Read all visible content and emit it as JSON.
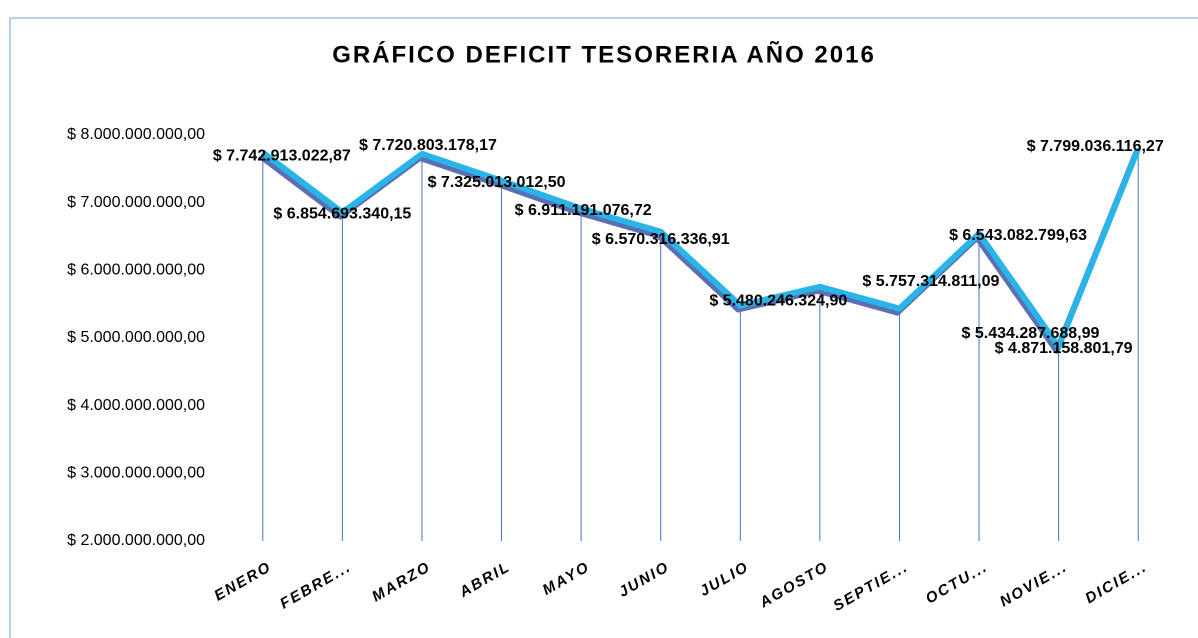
{
  "chart_data": {
    "type": "line",
    "title": "GRÁFICO DEFICIT TESORERIA AÑO 2016",
    "categories": [
      "ENERO",
      "FEBRE...",
      "MARZO",
      "ABRIL",
      "MAYO",
      "JUNIO",
      "JULIO",
      "AGOSTO",
      "SEPTIE...",
      "OCTU...",
      "NOVIE...",
      "DICIE..."
    ],
    "series": [
      {
        "color": "#29b5e8",
        "values": [
          7742913022.87,
          6854693340.15,
          7720803178.17,
          7325013012.5,
          6911191076.72,
          6570316336.91,
          5480246324.9,
          5757314811.09,
          5434287688.99,
          6543082799.63,
          4871158801.79,
          7799036116.27
        ],
        "value_labels": [
          "$ 7.742.913.022,87",
          "$ 6.854.693.340,15",
          "$ 7.720.803.178,17",
          "$ 7.325.013.012,50",
          "$ 6.911.191.076,72",
          "$ 6.570.316.336,91",
          "$ 5.480.246.324,90",
          "$ 5.757.314.811,09",
          "$ 5.434.287.688,99",
          "$ 6.543.082.799,63",
          "$ 4.871.158.801,79",
          "$ 7.799.036.116,27"
        ]
      }
    ],
    "ylim": [
      2000000000,
      8000000000
    ],
    "yticks": [
      {
        "value": 2000000000,
        "label": "$ 2.000.000.000,00"
      },
      {
        "value": 3000000000,
        "label": "$ 3.000.000.000,00"
      },
      {
        "value": 4000000000,
        "label": "$ 4.000.000.000,00"
      },
      {
        "value": 5000000000,
        "label": "$ 5.000.000.000,00"
      },
      {
        "value": 6000000000,
        "label": "$ 6.000.000.000,00"
      },
      {
        "value": 7000000000,
        "label": "$ 7.000.000.000,00"
      },
      {
        "value": 8000000000,
        "label": "$ 8.000.000.000,00"
      }
    ],
    "drop_lines": true
  }
}
